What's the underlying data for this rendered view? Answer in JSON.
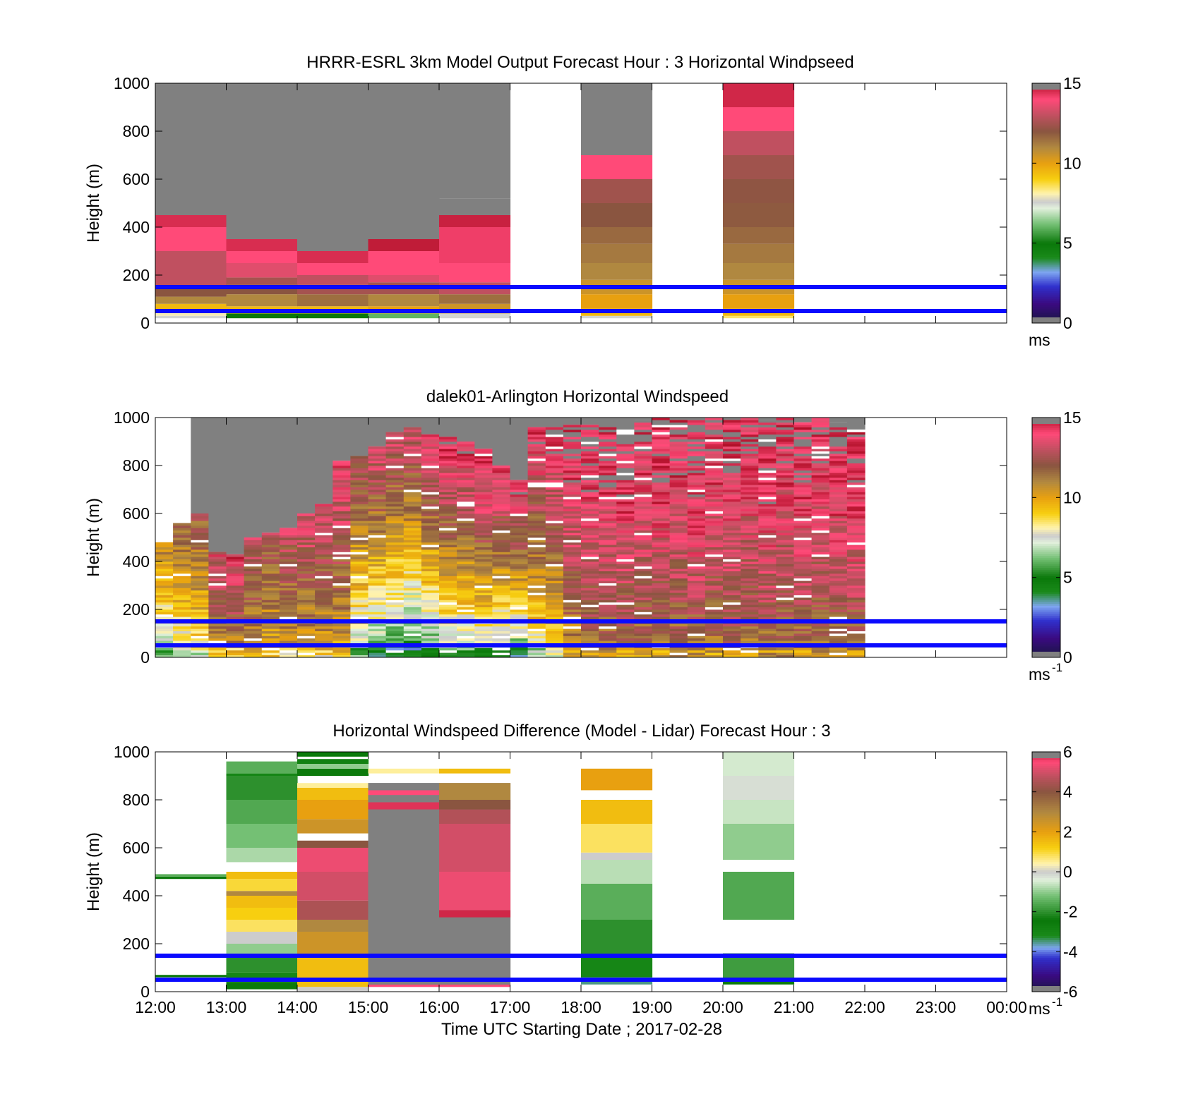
{
  "chart_data": [
    {
      "type": "heatmap",
      "title": "HRRR-ESRL 3km Model Output   Forecast Hour : 3 Horizontal Windpseed",
      "ylabel": "Height (m)",
      "xlabel": "",
      "ylim": [
        0,
        1000
      ],
      "yticks": [
        "0",
        "200",
        "400",
        "600",
        "800",
        "1000"
      ],
      "xticks": [
        "12:00",
        "13:00",
        "14:00",
        "15:00",
        "16:00",
        "17:00",
        "18:00",
        "19:00",
        "20:00",
        "21:00",
        "22:00",
        "23:00",
        "00:00"
      ],
      "xlim_hours": [
        12,
        24
      ],
      "grid": false,
      "colorbar": {
        "ticks": [
          "0",
          "5",
          "10",
          "15"
        ],
        "range": [
          0,
          15
        ],
        "unit": "ms",
        "unit_sup": "",
        "palette": "speed"
      },
      "reference_lines_m": [
        150,
        50
      ],
      "columns": [
        {
          "start": 12,
          "end": 13,
          "segments": [
            [
              20,
              30,
              7.5
            ],
            [
              30,
              50,
              8
            ],
            [
              50,
              80,
              9.5
            ],
            [
              80,
              110,
              11
            ],
            [
              110,
              150,
              12
            ],
            [
              150,
              300,
              13
            ],
            [
              300,
              400,
              14
            ],
            [
              400,
              450,
              14.5
            ],
            [
              450,
              500,
              15
            ]
          ]
        },
        {
          "start": 13,
          "end": 14,
          "segments": [
            [
              20,
              40,
              5
            ],
            [
              40,
              70,
              9.5
            ],
            [
              70,
              120,
              11
            ],
            [
              120,
              160,
              12
            ],
            [
              160,
              190,
              12.5
            ],
            [
              190,
              250,
              13.5
            ],
            [
              250,
              300,
              14
            ],
            [
              300,
              350,
              14.5
            ],
            [
              350,
              400,
              15
            ]
          ]
        },
        {
          "start": 14,
          "end": 15,
          "segments": [
            [
              20,
              40,
              5
            ],
            [
              40,
              70,
              9.5
            ],
            [
              70,
              120,
              11.5
            ],
            [
              120,
              160,
              12.5
            ],
            [
              160,
              200,
              13
            ],
            [
              200,
              250,
              14
            ],
            [
              250,
              300,
              14.5
            ]
          ]
        },
        {
          "start": 15,
          "end": 16,
          "segments": [
            [
              20,
              40,
              6
            ],
            [
              40,
              70,
              10
            ],
            [
              70,
              120,
              11
            ],
            [
              120,
              170,
              12.5
            ],
            [
              170,
              200,
              13.5
            ],
            [
              200,
              250,
              14
            ],
            [
              250,
              300,
              14
            ],
            [
              300,
              350,
              14.8
            ]
          ]
        },
        {
          "start": 16,
          "end": 17,
          "segments": [
            [
              20,
              40,
              7.5
            ],
            [
              40,
              80,
              10.5
            ],
            [
              80,
              120,
              11.5
            ],
            [
              120,
              170,
              13
            ],
            [
              170,
              250,
              14
            ],
            [
              250,
              400,
              14.2
            ],
            [
              400,
              450,
              14.7
            ],
            [
              450,
              520,
              15
            ],
            [
              520,
              600,
              15.3
            ]
          ]
        },
        {
          "start": 18,
          "end": 19,
          "segments": [
            [
              20,
              30,
              7.5
            ],
            [
              30,
              60,
              9.5
            ],
            [
              60,
              120,
              10
            ],
            [
              120,
              180,
              10.5
            ],
            [
              180,
              250,
              11
            ],
            [
              250,
              330,
              11.3
            ],
            [
              330,
              400,
              11.6
            ],
            [
              400,
              500,
              12
            ],
            [
              500,
              600,
              12.4
            ],
            [
              600,
              700,
              14
            ],
            [
              700,
              800,
              15
            ]
          ]
        },
        {
          "start": 20,
          "end": 21,
          "segments": [
            [
              20,
              30,
              8.5
            ],
            [
              30,
              60,
              9.5
            ],
            [
              60,
              120,
              10
            ],
            [
              120,
              180,
              10.5
            ],
            [
              180,
              250,
              11
            ],
            [
              250,
              330,
              11.3
            ],
            [
              330,
              400,
              11.6
            ],
            [
              400,
              500,
              11.9
            ],
            [
              500,
              600,
              12.1
            ],
            [
              600,
              700,
              12.4
            ],
            [
              700,
              800,
              13
            ],
            [
              800,
              900,
              14
            ],
            [
              900,
              1000,
              14.6
            ]
          ]
        }
      ]
    },
    {
      "type": "heatmap",
      "title": "dalek01-Arlington  Horizontal Windspeed",
      "ylabel": "Height (m)",
      "xlabel": "",
      "ylim": [
        0,
        1000
      ],
      "yticks": [
        "0",
        "200",
        "400",
        "600",
        "800",
        "1000"
      ],
      "xticks": [
        "12:00",
        "13:00",
        "14:00",
        "15:00",
        "16:00",
        "17:00",
        "18:00",
        "19:00",
        "20:00",
        "21:00",
        "22:00",
        "23:00",
        "00:00"
      ],
      "xlim_hours": [
        12,
        24
      ],
      "grid": false,
      "colorbar": {
        "ticks": [
          "0",
          "5",
          "10",
          "15"
        ],
        "range": [
          0,
          15
        ],
        "unit": "ms",
        "unit_sup": "-1",
        "palette": "speed"
      },
      "reference_lines_m": [
        150,
        50
      ],
      "columns_start_hour": 12,
      "column_width_hours": 0.25,
      "columns": [
        {
          "top": 480,
          "low": 6,
          "high": 11
        },
        {
          "top": 560,
          "low": 7,
          "high": 12
        },
        {
          "top": 600,
          "low": 8,
          "high": 12
        },
        {
          "top": 440,
          "low": 10,
          "high": 13.5
        },
        {
          "top": 430,
          "low": 10,
          "high": 14
        },
        {
          "top": 500,
          "low": 10,
          "high": 13
        },
        {
          "top": 520,
          "low": 9.5,
          "high": 12.5
        },
        {
          "top": 540,
          "low": 9.5,
          "high": 13
        },
        {
          "top": 600,
          "low": 9.5,
          "high": 13.5
        },
        {
          "top": 640,
          "low": 9.5,
          "high": 13.5
        },
        {
          "top": 820,
          "low": 9.5,
          "high": 14
        },
        {
          "top": 840,
          "low": 6,
          "high": 13
        },
        {
          "top": 880,
          "low": 5,
          "high": 13.5
        },
        {
          "top": 940,
          "low": 4.5,
          "high": 13.5
        },
        {
          "top": 960,
          "low": 4,
          "high": 13.5
        },
        {
          "top": 930,
          "low": 5,
          "high": 14
        },
        {
          "top": 920,
          "low": 6,
          "high": 14.5
        },
        {
          "top": 900,
          "low": 6,
          "high": 14.5
        },
        {
          "top": 870,
          "low": 6,
          "high": 15
        },
        {
          "top": 800,
          "low": 5.5,
          "high": 14.5
        },
        {
          "top": 740,
          "low": 5,
          "high": 14.5
        },
        {
          "top": 960,
          "low": 7,
          "high": 14.5
        },
        {
          "top": 960,
          "low": 8,
          "high": 14.5
        },
        {
          "top": 970,
          "low": 10,
          "high": 14.8
        },
        {
          "top": 970,
          "low": 11,
          "high": 15
        },
        {
          "top": 960,
          "low": 11,
          "high": 14.8
        },
        {
          "top": 950,
          "low": 11,
          "high": 15
        },
        {
          "top": 990,
          "low": 11,
          "high": 14.6
        },
        {
          "top": 1000,
          "low": 11,
          "high": 15
        },
        {
          "top": 990,
          "low": 11,
          "high": 14.6
        },
        {
          "top": 1000,
          "low": 11,
          "high": 15.2
        },
        {
          "top": 1000,
          "low": 11,
          "high": 14.6
        },
        {
          "top": 990,
          "low": 11,
          "high": 15
        },
        {
          "top": 1000,
          "low": 11,
          "high": 14.6
        },
        {
          "top": 990,
          "low": 11,
          "high": 15.2
        },
        {
          "top": 1000,
          "low": 11,
          "high": 14.6
        },
        {
          "top": 980,
          "low": 11,
          "high": 15
        },
        {
          "top": 1000,
          "low": 11,
          "high": 14.6
        },
        {
          "top": 980,
          "low": 11,
          "high": 15
        },
        {
          "top": 950,
          "low": 11,
          "high": 15.2
        }
      ]
    },
    {
      "type": "heatmap",
      "title": "Horizontal Windspeed Difference (Model - Lidar) Forecast Hour : 3",
      "ylabel": "Height (m)",
      "xlabel": "Time UTC  Starting Date ; 2017-02-28",
      "ylim": [
        0,
        1000
      ],
      "yticks": [
        "0",
        "200",
        "400",
        "600",
        "800",
        "1000"
      ],
      "xticks": [
        "12:00",
        "13:00",
        "14:00",
        "15:00",
        "16:00",
        "17:00",
        "18:00",
        "19:00",
        "20:00",
        "21:00",
        "22:00",
        "23:00",
        "00:00"
      ],
      "xlim_hours": [
        12,
        24
      ],
      "grid": false,
      "colorbar": {
        "ticks": [
          "-6",
          "-4",
          "-2",
          "0",
          "2",
          "4",
          "6"
        ],
        "range": [
          -6,
          6
        ],
        "unit": "ms",
        "unit_sup": "-1",
        "palette": "diff"
      },
      "reference_lines_m": [
        150,
        50
      ],
      "columns": [
        {
          "start": 12,
          "end": 13,
          "segments": [
            [
              470,
              480,
              -2.5
            ],
            [
              480,
              490,
              -1.5
            ],
            [
              60,
              70,
              -2.5
            ]
          ]
        },
        {
          "start": 13,
          "end": 14,
          "segments": [
            [
              10,
              40,
              -2.5
            ],
            [
              40,
              80,
              -3
            ],
            [
              80,
              150,
              -2
            ],
            [
              150,
              200,
              -1
            ],
            [
              200,
              250,
              0
            ],
            [
              250,
              300,
              0.8
            ],
            [
              300,
              350,
              1.2
            ],
            [
              350,
              400,
              1.5
            ],
            [
              400,
              420,
              3
            ],
            [
              420,
              470,
              1
            ],
            [
              470,
              500,
              1.5
            ],
            [
              540,
              600,
              -0.8
            ],
            [
              600,
              700,
              -1.2
            ],
            [
              700,
              800,
              -1.6
            ],
            [
              800,
              900,
              -2
            ],
            [
              900,
              910,
              -3
            ],
            [
              910,
              960,
              -1.5
            ]
          ]
        },
        {
          "start": 14,
          "end": 15,
          "segments": [
            [
              0,
              20,
              0
            ],
            [
              20,
              150,
              1.5
            ],
            [
              150,
              250,
              2.5
            ],
            [
              250,
              300,
              3
            ],
            [
              300,
              380,
              4.5
            ],
            [
              380,
              500,
              5
            ],
            [
              500,
              600,
              5.3
            ],
            [
              600,
              630,
              4
            ],
            [
              660,
              720,
              2.5
            ],
            [
              720,
              800,
              2
            ],
            [
              800,
              850,
              1.5
            ],
            [
              850,
              870,
              0.5
            ],
            [
              900,
              930,
              -2.5
            ],
            [
              930,
              950,
              -1
            ],
            [
              950,
              970,
              -2.8
            ],
            [
              980,
              1000,
              -2.5
            ]
          ]
        },
        {
          "start": 15,
          "end": 16,
          "segments": [
            [
              20,
              30,
              5.5
            ],
            [
              30,
              760,
              6
            ],
            [
              760,
              790,
              5.7
            ],
            [
              790,
              820,
              6
            ],
            [
              820,
              840,
              5.5
            ],
            [
              840,
              870,
              6
            ],
            [
              910,
              930,
              0.5
            ]
          ]
        },
        {
          "start": 16,
          "end": 17,
          "segments": [
            [
              20,
              30,
              5.5
            ],
            [
              30,
              310,
              6
            ],
            [
              310,
              340,
              5.8
            ],
            [
              340,
              500,
              5.3
            ],
            [
              500,
              700,
              5
            ],
            [
              700,
              760,
              4.6
            ],
            [
              760,
              800,
              4
            ],
            [
              800,
              870,
              3
            ],
            [
              910,
              930,
              1.5
            ]
          ]
        },
        {
          "start": 18,
          "end": 19,
          "segments": [
            [
              30,
              60,
              -3.5
            ],
            [
              60,
              150,
              -3
            ],
            [
              150,
              300,
              -2
            ],
            [
              300,
              450,
              -1.5
            ],
            [
              450,
              550,
              -0.7
            ],
            [
              550,
              580,
              0
            ],
            [
              580,
              700,
              0.8
            ],
            [
              700,
              800,
              1.5
            ],
            [
              840,
              930,
              2
            ]
          ]
        },
        {
          "start": 20,
          "end": 21,
          "segments": [
            [
              30,
              60,
              -2.5
            ],
            [
              60,
              160,
              -1.8
            ],
            [
              300,
              500,
              -1.6
            ],
            [
              550,
              700,
              -1
            ],
            [
              700,
              800,
              -0.6
            ],
            [
              800,
              900,
              -0.2
            ],
            [
              900,
              1000,
              -0.5
            ]
          ]
        }
      ]
    }
  ]
}
